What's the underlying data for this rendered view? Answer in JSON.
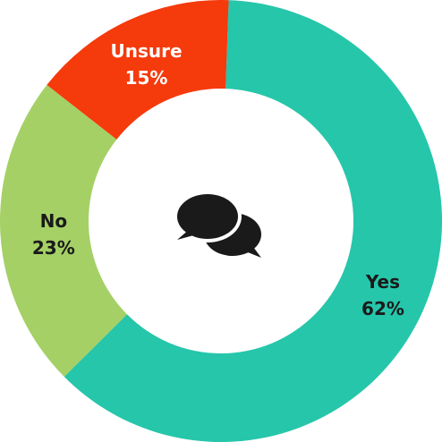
{
  "chart_data": {
    "type": "pie",
    "donut": true,
    "center_icon": "speech-bubbles-icon",
    "categories": [
      "Yes",
      "No",
      "Unsure"
    ],
    "values": [
      62,
      23,
      15
    ],
    "labels": [
      "62%",
      "23%",
      "15%"
    ],
    "colors": [
      "#26c6aa",
      "#a5d066",
      "#f53a0c"
    ],
    "label_colors": [
      "#1a1a1a",
      "#1a1a1a",
      "#ffffff"
    ]
  }
}
